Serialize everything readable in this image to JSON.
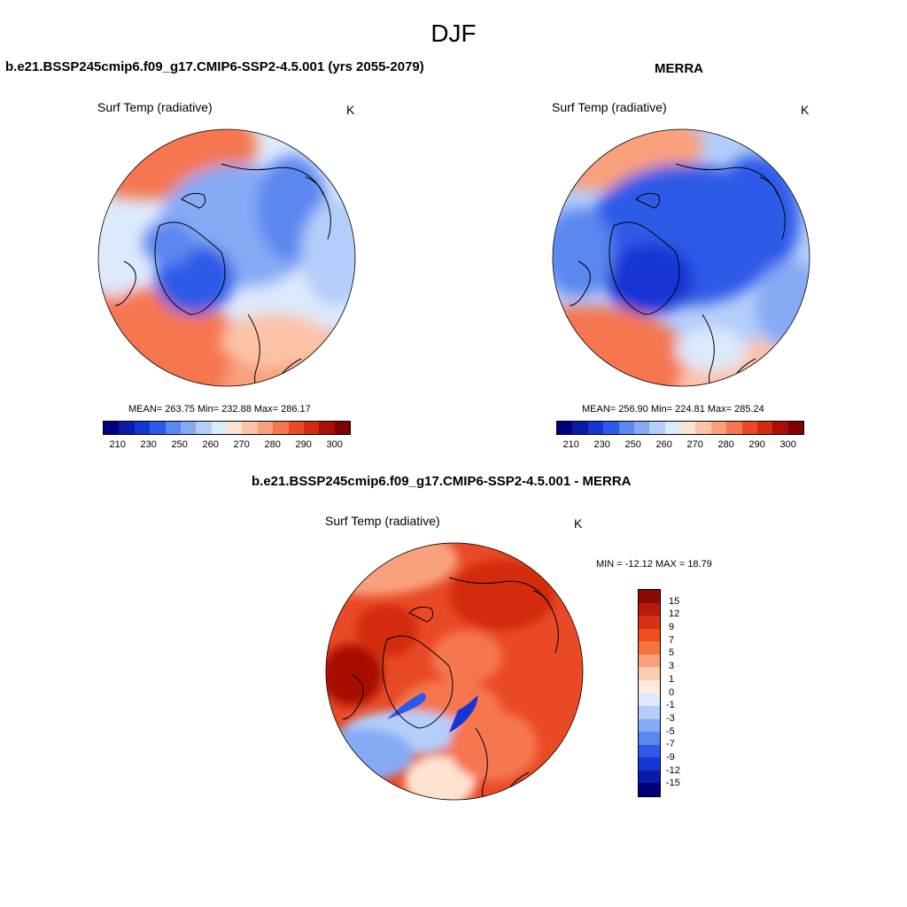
{
  "figure": {
    "title": "DJF"
  },
  "panels": [
    {
      "heading": "b.e21.BSSP245cmip6.f09_g17.CMIP6-SSP2-4.5.001 (yrs 2055-2079)",
      "variable": "Surf Temp (radiative)",
      "unit": "K",
      "stats": "MEAN= 263.75  Min= 232.88  Max= 286.17",
      "map_type": "north-polar-stereographic",
      "colorbar_colors": [
        "#00007f",
        "#0a1ba6",
        "#1535d4",
        "#2d5ae8",
        "#5a87f0",
        "#87aaf5",
        "#b4cdfa",
        "#dde9fc",
        "#fde3d0",
        "#fcc3a6",
        "#f9a07c",
        "#f57650",
        "#e94a26",
        "#d42a10",
        "#a90f04",
        "#7f0000"
      ],
      "colorbar_ticks": [
        "210",
        "230",
        "250",
        "260",
        "270",
        "280",
        "290",
        "300"
      ]
    },
    {
      "heading": "MERRA",
      "variable": "Surf Temp (radiative)",
      "unit": "K",
      "stats": "MEAN= 256.90  Min= 224.81  Max= 285.24",
      "map_type": "north-polar-stereographic",
      "colorbar_colors": [
        "#00007f",
        "#0a1ba6",
        "#1535d4",
        "#2d5ae8",
        "#5a87f0",
        "#87aaf5",
        "#b4cdfa",
        "#dde9fc",
        "#fde3d0",
        "#fcc3a6",
        "#f9a07c",
        "#f57650",
        "#e94a26",
        "#d42a10",
        "#a90f04",
        "#7f0000"
      ],
      "colorbar_ticks": [
        "210",
        "230",
        "250",
        "260",
        "270",
        "280",
        "290",
        "300"
      ]
    },
    {
      "heading": "b.e21.BSSP245cmip6.f09_g17.CMIP6-SSP2-4.5.001 - MERRA",
      "variable": "Surf Temp (radiative)",
      "unit": "K",
      "stats": "MIN = -12.12 MAX =  18.79",
      "map_type": "north-polar-stereographic",
      "colorbar_colors": [
        "#8b0a04",
        "#b71c08",
        "#d93212",
        "#f04e1f",
        "#f7743f",
        "#faa07a",
        "#fdcbb0",
        "#fdebdf",
        "#dde9fc",
        "#b4cdfa",
        "#87aaf5",
        "#5a87f0",
        "#2d5ae8",
        "#1535d4",
        "#0a1ba6",
        "#00007f"
      ],
      "colorbar_ticks": [
        "15",
        "12",
        "9",
        "7",
        "5",
        "3",
        "1",
        "0",
        "-1",
        "-3",
        "-5",
        "-7",
        "-9",
        "-12",
        "-15"
      ]
    }
  ]
}
